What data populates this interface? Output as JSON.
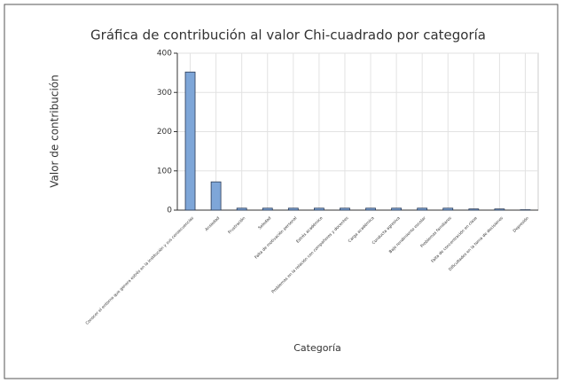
{
  "chart_data": {
    "type": "bar",
    "title": "Gráfica de contribución al valor Chi-cuadrado por categoría",
    "xlabel": "Categoría",
    "ylabel": "Valor de contribución",
    "categories": [
      "Conocer el entorno que genera estrés en la institución y sus consecuencias",
      "Ansiedad",
      "Frustración",
      "Soledad",
      "Falta de motivación personal",
      "Estrés académico",
      "Problemas en la relación con compañeros y docentes",
      "Carga académica",
      "Conducta agresiva",
      "Bajo rendimiento escolar",
      "Problemas familiares",
      "Falta de concentración en clase",
      "Dificultades en la toma de decisiones",
      "Depresión"
    ],
    "values": [
      352,
      72,
      5,
      5,
      5,
      5,
      5,
      5,
      5,
      5,
      5,
      3,
      3,
      1
    ],
    "color": "#7ea6d8",
    "ylim": [
      0,
      400
    ],
    "yticks": [
      0,
      100,
      200,
      300,
      400
    ],
    "grid": true
  }
}
